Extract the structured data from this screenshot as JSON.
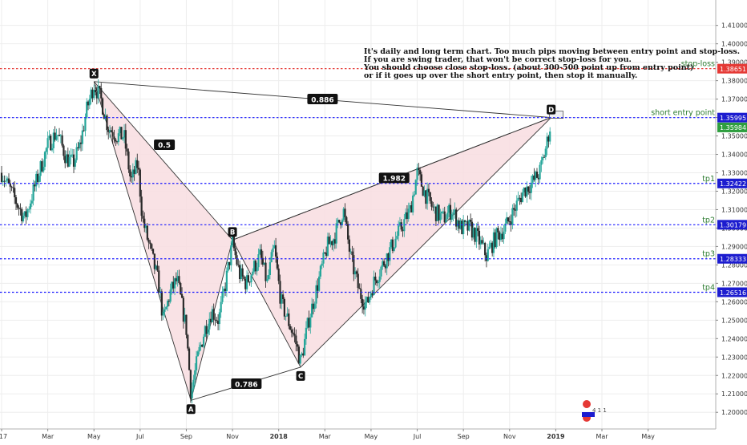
{
  "chart_data": {
    "type": "candlestick",
    "y_ticks": [
      "1.41000",
      "1.40000",
      "1.39000",
      "1.38000",
      "1.37000",
      "1.36000",
      "1.35000",
      "1.34000",
      "1.33000",
      "1.32000",
      "1.31000",
      "1.30000",
      "1.29000",
      "1.28000",
      "1.27000",
      "1.26000",
      "1.25000",
      "1.24000",
      "1.23000",
      "1.22000",
      "1.21000",
      "1.20000"
    ],
    "x_ticks": [
      {
        "label": "17",
        "t": 0.0
      },
      {
        "label": "Mar",
        "t": 2.0
      },
      {
        "label": "May",
        "t": 4.0
      },
      {
        "label": "Jul",
        "t": 6.0
      },
      {
        "label": "Sep",
        "t": 8.0
      },
      {
        "label": "Nov",
        "t": 10.0
      },
      {
        "label": "2018",
        "t": 12.0
      },
      {
        "label": "Mar",
        "t": 14.0
      },
      {
        "label": "May",
        "t": 16.0
      },
      {
        "label": "Jul",
        "t": 18.0
      },
      {
        "label": "Sep",
        "t": 20.0
      },
      {
        "label": "Nov",
        "t": 22.0
      },
      {
        "label": "2019",
        "t": 24.0
      },
      {
        "label": "Mar",
        "t": 26.0
      },
      {
        "label": "May",
        "t": 28.0
      }
    ],
    "y_range": [
      1.194,
      1.419
    ],
    "t_range": [
      0.0,
      30.2
    ],
    "pattern_points": [
      {
        "label": "X",
        "t": 4.0,
        "price": 1.3795
      },
      {
        "label": "A",
        "t": 8.2,
        "price": 1.2065
      },
      {
        "label": "B",
        "t": 10.0,
        "price": 1.2935
      },
      {
        "label": "C",
        "t": 12.95,
        "price": 1.2245
      },
      {
        "label": "D",
        "t": 23.8,
        "price": 1.36
      }
    ],
    "ratios": [
      {
        "label": "0.886",
        "t": 13.9,
        "price": 1.3698
      },
      {
        "label": "0.5",
        "t": 7.05,
        "price": 1.345
      },
      {
        "label": "1.982",
        "t": 17.0,
        "price": 1.327
      },
      {
        "label": "0.786",
        "t": 10.6,
        "price": 1.2153
      }
    ],
    "levels": [
      {
        "name": "stop-loss",
        "price_label": "1.38651",
        "price": 1.38651,
        "color": "#e53935",
        "badge": "#e53935"
      },
      {
        "name": "short entry point",
        "price_label": "1.35995",
        "price": 1.35995,
        "color": "#1a1aff",
        "badge": "#1c1ccf"
      },
      {
        "name": "tp1",
        "price_label": "1.32422",
        "price": 1.32422,
        "color": "#1a1aff",
        "badge": "#1c1ccf"
      },
      {
        "name": "tp2",
        "price_label": "1.30179",
        "price": 1.30179,
        "color": "#1a1aff",
        "badge": "#1c1ccf"
      },
      {
        "name": "tp3",
        "price_label": "1.28333",
        "price": 1.28333,
        "color": "#1a1aff",
        "badge": "#1c1ccf"
      },
      {
        "name": "tp4",
        "price_label": "1.26516",
        "price": 1.26516,
        "color": "#1a1aff",
        "badge": "#1c1ccf"
      }
    ],
    "current_price": {
      "label": "1.35984",
      "price": 1.35984,
      "color": "#2e9e3e"
    },
    "candle_path": [
      {
        "t": 0.0,
        "p": 1.33
      },
      {
        "t": 0.6,
        "p": 1.315
      },
      {
        "t": 1.0,
        "p": 1.305
      },
      {
        "t": 1.5,
        "p": 1.325
      },
      {
        "t": 2.0,
        "p": 1.345
      },
      {
        "t": 2.4,
        "p": 1.352
      },
      {
        "t": 2.8,
        "p": 1.338
      },
      {
        "t": 3.1,
        "p": 1.335
      },
      {
        "t": 3.4,
        "p": 1.345
      },
      {
        "t": 3.7,
        "p": 1.365
      },
      {
        "t": 4.0,
        "p": 1.378
      },
      {
        "t": 4.3,
        "p": 1.37
      },
      {
        "t": 4.6,
        "p": 1.355
      },
      {
        "t": 5.0,
        "p": 1.35
      },
      {
        "t": 5.3,
        "p": 1.35
      },
      {
        "t": 5.6,
        "p": 1.325
      },
      {
        "t": 5.9,
        "p": 1.335
      },
      {
        "t": 6.1,
        "p": 1.305
      },
      {
        "t": 6.4,
        "p": 1.29
      },
      {
        "t": 6.8,
        "p": 1.27
      },
      {
        "t": 7.0,
        "p": 1.25
      },
      {
        "t": 7.3,
        "p": 1.265
      },
      {
        "t": 7.6,
        "p": 1.272
      },
      {
        "t": 8.0,
        "p": 1.245
      },
      {
        "t": 8.2,
        "p": 1.21
      },
      {
        "t": 8.5,
        "p": 1.23
      },
      {
        "t": 8.8,
        "p": 1.245
      },
      {
        "t": 9.1,
        "p": 1.255
      },
      {
        "t": 9.4,
        "p": 1.25
      },
      {
        "t": 9.7,
        "p": 1.27
      },
      {
        "t": 10.0,
        "p": 1.292
      },
      {
        "t": 10.3,
        "p": 1.275
      },
      {
        "t": 10.6,
        "p": 1.27
      },
      {
        "t": 10.9,
        "p": 1.278
      },
      {
        "t": 11.2,
        "p": 1.285
      },
      {
        "t": 11.5,
        "p": 1.27
      },
      {
        "t": 11.8,
        "p": 1.29
      },
      {
        "t": 12.1,
        "p": 1.26
      },
      {
        "t": 12.4,
        "p": 1.25
      },
      {
        "t": 12.7,
        "p": 1.24
      },
      {
        "t": 12.95,
        "p": 1.227
      },
      {
        "t": 13.3,
        "p": 1.25
      },
      {
        "t": 13.7,
        "p": 1.27
      },
      {
        "t": 14.1,
        "p": 1.29
      },
      {
        "t": 14.4,
        "p": 1.295
      },
      {
        "t": 14.8,
        "p": 1.31
      },
      {
        "t": 15.1,
        "p": 1.285
      },
      {
        "t": 15.5,
        "p": 1.265
      },
      {
        "t": 15.8,
        "p": 1.258
      },
      {
        "t": 16.1,
        "p": 1.27
      },
      {
        "t": 16.5,
        "p": 1.28
      },
      {
        "t": 16.9,
        "p": 1.29
      },
      {
        "t": 17.3,
        "p": 1.3
      },
      {
        "t": 17.7,
        "p": 1.31
      },
      {
        "t": 18.0,
        "p": 1.33
      },
      {
        "t": 18.3,
        "p": 1.32
      },
      {
        "t": 18.7,
        "p": 1.31
      },
      {
        "t": 19.1,
        "p": 1.305
      },
      {
        "t": 19.5,
        "p": 1.31
      },
      {
        "t": 19.9,
        "p": 1.3
      },
      {
        "t": 20.3,
        "p": 1.3
      },
      {
        "t": 20.6,
        "p": 1.295
      },
      {
        "t": 21.0,
        "p": 1.285
      },
      {
        "t": 21.4,
        "p": 1.295
      },
      {
        "t": 21.8,
        "p": 1.3
      },
      {
        "t": 22.2,
        "p": 1.31
      },
      {
        "t": 22.6,
        "p": 1.32
      },
      {
        "t": 23.0,
        "p": 1.325
      },
      {
        "t": 23.3,
        "p": 1.33
      },
      {
        "t": 23.6,
        "p": 1.345
      },
      {
        "t": 23.8,
        "p": 1.358
      }
    ],
    "annotation_lines": [
      "It's daily and long term chart. Too much pips moving between entry point and stop-loss.",
      "If you are swing trader, that won't be correct stop-loss for you.",
      "You should choose close stop-loss. (about 300-500 point up from entry point)",
      " or if it goes up over the short entry point, then stop it manually."
    ],
    "badge_text": "4 1 1",
    "colors": {
      "up": "#26a69a",
      "down": "#1e1e1e",
      "pattern_fill": "#f8dde0",
      "pattern_stroke": "#333333",
      "grid": "#ededed",
      "axis_text": "#333333"
    }
  }
}
